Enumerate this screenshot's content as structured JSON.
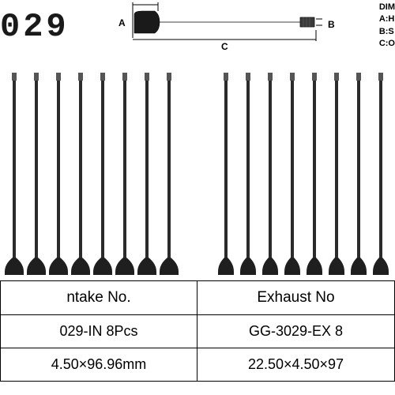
{
  "part_number": "029",
  "diagram": {
    "labels": {
      "a": "A",
      "b": "B",
      "c": "C"
    },
    "legend_title": "DIM",
    "legend_a": "A:H",
    "legend_b": "B:S",
    "legend_c": "C:O",
    "head_color": "#1a1a1a",
    "stem_color": "#2a2a2a",
    "line_color": "#000000"
  },
  "valves": {
    "group_left_count": 8,
    "group_right_count": 8,
    "head_color": "#1f1f1f",
    "stem_color": "#2b2b2b",
    "tip_color": "#555555"
  },
  "table": {
    "headers": {
      "intake": "ntake No.",
      "exhaust": "Exhaust No"
    },
    "row1": {
      "intake": "029-IN 8Pcs",
      "exhaust": "GG-3029-EX 8"
    },
    "row2": {
      "intake": "4.50×96.96mm",
      "exhaust": "22.50×4.50×97"
    }
  },
  "colors": {
    "background": "#ffffff",
    "text": "#000000",
    "border": "#000000"
  }
}
